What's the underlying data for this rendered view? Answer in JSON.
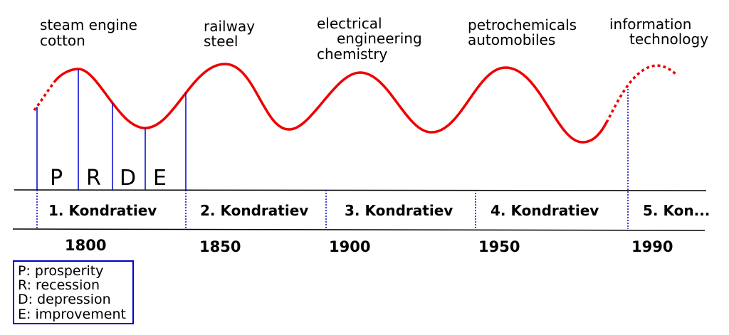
{
  "industries": [
    {
      "lines": [
        "steam engine",
        "cotton"
      ]
    },
    {
      "lines": [
        "railway",
        "steel"
      ]
    },
    {
      "lines": [
        "electrical",
        "engineering",
        "chemistry"
      ]
    },
    {
      "lines": [
        "petrochemicals",
        "automobiles"
      ]
    },
    {
      "lines": [
        "information",
        "technology"
      ]
    }
  ],
  "phases": [
    "P",
    "R",
    "D",
    "E"
  ],
  "cycles": [
    "1. Kondratiev",
    "2. Kondratiev",
    "3. Kondratiev",
    "4. Kondratiev",
    "5. Kon..."
  ],
  "years": [
    "1800",
    "1850",
    "1900",
    "1950",
    "1990"
  ],
  "legend": [
    "P: prosperity",
    "R: recession",
    "D: depression",
    "E: improvement"
  ],
  "colors": {
    "wave": "#ee0000",
    "phase_lines": "#0000cc",
    "axis": "#000000"
  }
}
